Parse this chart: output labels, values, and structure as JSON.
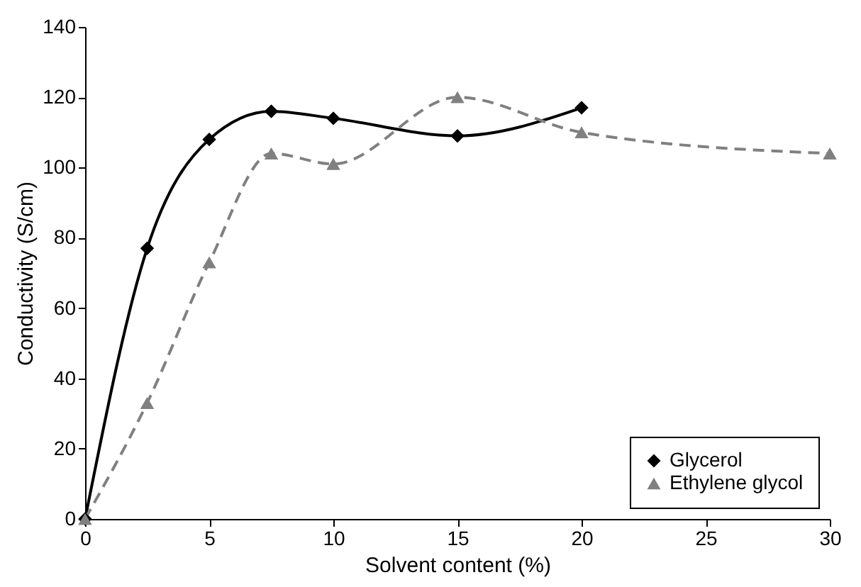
{
  "chart_data": {
    "type": "line",
    "xlabel": "Solvent content (%)",
    "ylabel": "Conductivity (S/cm)",
    "series": [
      {
        "name": "Glycerol",
        "color": "#000000",
        "marker": "diamond",
        "line_style": "solid",
        "x": [
          0,
          2.5,
          5,
          7.5,
          10,
          15,
          20
        ],
        "values": [
          0,
          77,
          108,
          116,
          114,
          109,
          117
        ]
      },
      {
        "name": "Ethylene glycol",
        "color": "#808080",
        "marker": "triangle",
        "line_style": "dashed",
        "x": [
          0,
          2.5,
          5,
          7.5,
          10,
          15,
          20,
          30
        ],
        "values": [
          0,
          33,
          73,
          104,
          101,
          120,
          110,
          104
        ]
      }
    ],
    "xlim": [
      0,
      30
    ],
    "xticks": [
      0,
      5,
      10,
      15,
      20,
      25,
      30
    ],
    "ylim": [
      0,
      140
    ],
    "yticks": [
      0,
      20,
      40,
      60,
      80,
      100,
      120,
      140
    ],
    "grid": false,
    "legend": "bottom right"
  }
}
